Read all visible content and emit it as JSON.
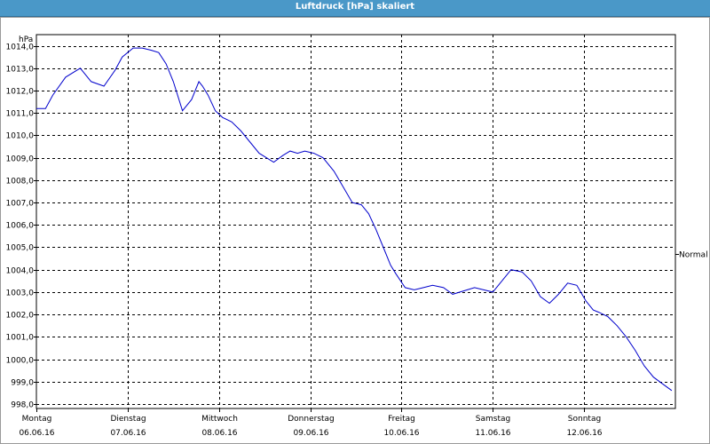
{
  "title": "Luftdruck [hPa] skaliert",
  "chart_data": {
    "type": "line",
    "ylabel": "hPa",
    "ylim": [
      997.8,
      1014.5
    ],
    "yticks": [
      998.0,
      999.0,
      1000.0,
      1001.0,
      1002.0,
      1003.0,
      1004.0,
      1005.0,
      1006.0,
      1007.0,
      1008.0,
      1009.0,
      1010.0,
      1011.0,
      1012.0,
      1013.0,
      1014.0
    ],
    "ytick_labels": [
      "998,0",
      "999,0",
      "1000,0",
      "1001,0",
      "1002,0",
      "1003,0",
      "1004,0",
      "1005,0",
      "1006,0",
      "1007,0",
      "1008,0",
      "1009,0",
      "1010,0",
      "1011,0",
      "1012,0",
      "1013,0",
      "1014,0"
    ],
    "xlim": [
      0,
      7
    ],
    "xticks": [
      {
        "day": "Montag",
        "date": "06.06.16"
      },
      {
        "day": "Dienstag",
        "date": "07.06.16"
      },
      {
        "day": "Mittwoch",
        "date": "08.06.16"
      },
      {
        "day": "Donnerstag",
        "date": "09.06.16"
      },
      {
        "day": "Freitag",
        "date": "10.06.16"
      },
      {
        "day": "Samstag",
        "date": "11.06.16"
      },
      {
        "day": "Sonntag",
        "date": "12.06.16"
      }
    ],
    "reference_line": {
      "label": "Normal",
      "value": 1004.7
    },
    "grid": true,
    "series": [
      {
        "color": "#0000cc",
        "x": [
          0,
          0.1,
          0.18,
          0.32,
          0.48,
          0.6,
          0.74,
          0.86,
          0.94,
          1.06,
          1.16,
          1.26,
          1.34,
          1.42,
          1.5,
          1.6,
          1.7,
          1.78,
          1.82,
          1.88,
          1.96,
          2.04,
          2.14,
          2.24,
          2.34,
          2.44,
          2.6,
          2.7,
          2.78,
          2.86,
          2.94,
          3.04,
          3.14,
          3.26,
          3.36,
          3.46,
          3.56,
          3.64,
          3.72,
          3.8,
          3.88,
          3.94,
          4.04,
          4.14,
          4.24,
          4.34,
          4.46,
          4.56,
          4.64,
          4.72,
          4.8,
          4.9,
          5.0,
          5.1,
          5.2,
          5.32,
          5.42,
          5.52,
          5.62,
          5.72,
          5.82,
          5.92,
          6.02,
          6.1,
          6.16,
          6.26,
          6.36,
          6.46,
          6.56,
          6.66,
          6.76,
          6.86,
          6.96
        ],
        "values": [
          1011.2,
          1011.2,
          1011.8,
          1012.6,
          1013.0,
          1012.4,
          1012.2,
          1012.9,
          1013.5,
          1013.9,
          1013.9,
          1013.8,
          1013.7,
          1013.2,
          1012.4,
          1011.1,
          1011.6,
          1012.4,
          1012.2,
          1011.8,
          1011.1,
          1010.8,
          1010.6,
          1010.2,
          1009.7,
          1009.2,
          1008.8,
          1009.1,
          1009.3,
          1009.2,
          1009.3,
          1009.2,
          1009.0,
          1008.4,
          1007.7,
          1007.0,
          1006.9,
          1006.5,
          1005.8,
          1005.0,
          1004.2,
          1003.8,
          1003.2,
          1003.1,
          1003.2,
          1003.3,
          1003.2,
          1002.9,
          1003.0,
          1003.1,
          1003.2,
          1003.1,
          1003.0,
          1003.5,
          1004.0,
          1003.9,
          1003.5,
          1002.8,
          1002.5,
          1002.9,
          1003.4,
          1003.3,
          1002.6,
          1002.2,
          1002.1,
          1001.9,
          1001.5,
          1001.0,
          1000.4,
          999.7,
          999.2,
          998.9,
          998.6
        ]
      }
    ]
  }
}
